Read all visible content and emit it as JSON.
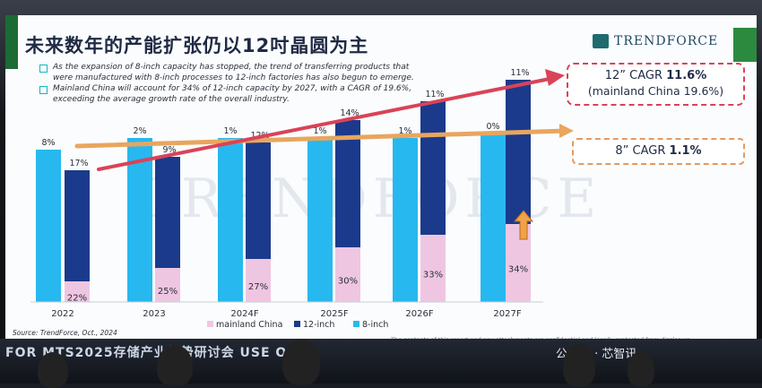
{
  "slide": {
    "title": "未来数年的产能扩张仍以12吋晶圆为主",
    "logo": "TRENDFORCE",
    "watermark": "TRENDFORCE",
    "bullets": [
      "As the expansion of 8-inch capacity has stopped, the trend of transferring products that were manufactured with 8-inch processes to 12-inch factories has also begun to emerge.",
      "Mainland China will account for 34% of 12-inch capacity by 2027, with a CAGR of 19.6%, exceeding the average growth rate of the overall industry."
    ],
    "source": "Source: TrendForce, Oct., 2024",
    "disclaimer": "The contents of this report and any attachments are confidential and legally protected from disclosure.",
    "callout_12": {
      "prefix": "12” CAGR ",
      "value": "11.6%",
      "line2": "(mainland China 19.6%)"
    },
    "callout_8": {
      "prefix": "8” CAGR ",
      "value": "1.1%"
    },
    "footer_text": "FOR MTS2025存储产业趋势研讨会 USE ONLY",
    "wechat": "公众号 · 芯智讯"
  },
  "colors": {
    "eight_inch": "#27b8ef",
    "twelve_inch": "#1b3a8c",
    "mainland_china": "#efc6e1",
    "trend_12": "#d94358",
    "trend_8": "#e8a65e",
    "up_arrow": "#f0a24a"
  },
  "chart_data": {
    "type": "bar",
    "categories": [
      "2022",
      "2023",
      "2024F",
      "2025F",
      "2026F",
      "2027F"
    ],
    "series": [
      {
        "name": "8-inch",
        "growth_labels": [
          "8%",
          "2%",
          "1%",
          "1%",
          "1%",
          "0%"
        ]
      },
      {
        "name": "12-inch",
        "growth_labels": [
          "17%",
          "9%",
          "12%",
          "14%",
          "11%",
          "11%"
        ]
      },
      {
        "name": "mainland China",
        "share_labels": [
          "22%",
          "25%",
          "27%",
          "30%",
          "33%",
          "34%"
        ]
      }
    ],
    "legend": [
      "mainland China",
      "12-inch",
      "8-inch"
    ],
    "legend_position": "bottom"
  }
}
